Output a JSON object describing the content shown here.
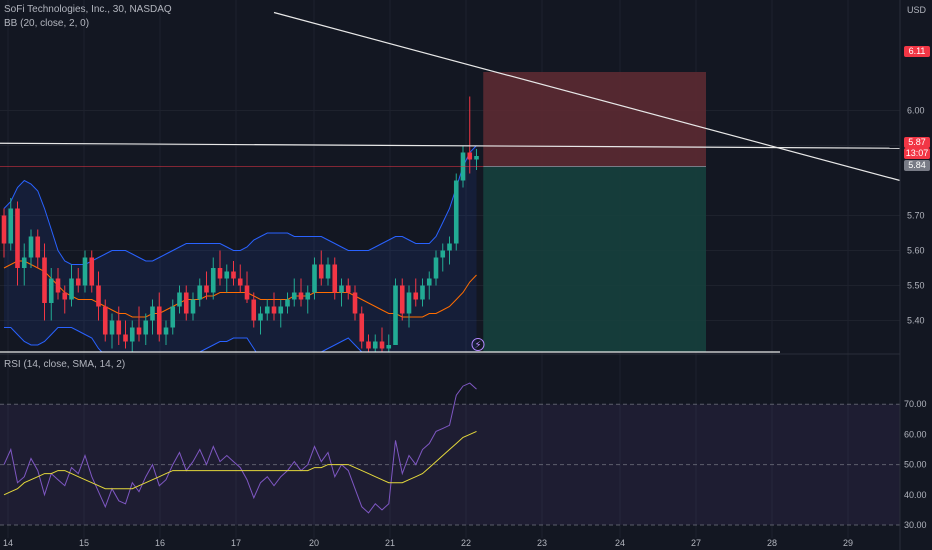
{
  "header": {
    "symbol_line": "SoFi Technologies, Inc., 30, NASDAQ",
    "indicator_line": "BB (20, close, 2, 0)",
    "rsi_line": "RSI (14, close, SMA, 14, 2)",
    "currency": "USD"
  },
  "price_tags": {
    "stop": "6.11",
    "last": "5.87",
    "countdown": "13:07",
    "entry": "5.84"
  },
  "colors": {
    "background": "#131722",
    "up": "#22ab94",
    "down": "#f23645",
    "bb_band": "#2962ff",
    "bb_basis": "#ff6d00",
    "rsi_line": "#7e57c2",
    "rsi_ma": "#e4d83c",
    "stop_zone": "#5c2a32",
    "target_zone": "#16403d"
  },
  "chart_data": [
    {
      "type": "candlestick",
      "price_axis": {
        "ticks": [
          6.0,
          5.9,
          5.7,
          5.6,
          5.5,
          5.4
        ],
        "tick_labels": [
          "6.00",
          "5.90",
          "5.70",
          "5.60",
          "5.50",
          "5.40"
        ],
        "range": [
          5.31,
          6.23
        ]
      },
      "time_axis": {
        "tick_labels": [
          "14",
          "15",
          "16",
          "17",
          "20",
          "21",
          "22",
          "23",
          "24",
          "27",
          "28",
          "29"
        ]
      },
      "candles_ohlc": [
        [
          5.7,
          5.72,
          5.58,
          5.62
        ],
        [
          5.62,
          5.75,
          5.6,
          5.72
        ],
        [
          5.72,
          5.74,
          5.5,
          5.55
        ],
        [
          5.55,
          5.62,
          5.5,
          5.58
        ],
        [
          5.58,
          5.66,
          5.55,
          5.64
        ],
        [
          5.64,
          5.66,
          5.55,
          5.58
        ],
        [
          5.58,
          5.62,
          5.4,
          5.45
        ],
        [
          5.45,
          5.55,
          5.4,
          5.52
        ],
        [
          5.52,
          5.55,
          5.46,
          5.48
        ],
        [
          5.48,
          5.5,
          5.42,
          5.46
        ],
        [
          5.46,
          5.56,
          5.44,
          5.52
        ],
        [
          5.52,
          5.55,
          5.48,
          5.5
        ],
        [
          5.5,
          5.6,
          5.48,
          5.58
        ],
        [
          5.58,
          5.6,
          5.48,
          5.5
        ],
        [
          5.5,
          5.54,
          5.4,
          5.44
        ],
        [
          5.44,
          5.46,
          5.34,
          5.36
        ],
        [
          5.36,
          5.42,
          5.32,
          5.4
        ],
        [
          5.4,
          5.44,
          5.33,
          5.36
        ],
        [
          5.36,
          5.4,
          5.32,
          5.34
        ],
        [
          5.34,
          5.4,
          5.3,
          5.38
        ],
        [
          5.38,
          5.44,
          5.34,
          5.36
        ],
        [
          5.36,
          5.42,
          5.33,
          5.4
        ],
        [
          5.4,
          5.46,
          5.36,
          5.44
        ],
        [
          5.44,
          5.48,
          5.34,
          5.36
        ],
        [
          5.36,
          5.4,
          5.33,
          5.38
        ],
        [
          5.38,
          5.46,
          5.36,
          5.44
        ],
        [
          5.44,
          5.5,
          5.42,
          5.48
        ],
        [
          5.48,
          5.5,
          5.4,
          5.42
        ],
        [
          5.42,
          5.48,
          5.4,
          5.46
        ],
        [
          5.46,
          5.52,
          5.44,
          5.5
        ],
        [
          5.5,
          5.54,
          5.46,
          5.48
        ],
        [
          5.48,
          5.58,
          5.46,
          5.55
        ],
        [
          5.55,
          5.6,
          5.5,
          5.52
        ],
        [
          5.52,
          5.56,
          5.48,
          5.54
        ],
        [
          5.54,
          5.57,
          5.5,
          5.52
        ],
        [
          5.52,
          5.56,
          5.48,
          5.5
        ],
        [
          5.5,
          5.54,
          5.45,
          5.46
        ],
        [
          5.46,
          5.48,
          5.38,
          5.4
        ],
        [
          5.4,
          5.44,
          5.36,
          5.42
        ],
        [
          5.42,
          5.46,
          5.4,
          5.44
        ],
        [
          5.44,
          5.48,
          5.4,
          5.42
        ],
        [
          5.42,
          5.46,
          5.38,
          5.44
        ],
        [
          5.44,
          5.48,
          5.42,
          5.46
        ],
        [
          5.46,
          5.52,
          5.44,
          5.48
        ],
        [
          5.48,
          5.52,
          5.44,
          5.46
        ],
        [
          5.46,
          5.5,
          5.42,
          5.48
        ],
        [
          5.48,
          5.58,
          5.46,
          5.56
        ],
        [
          5.56,
          5.6,
          5.5,
          5.52
        ],
        [
          5.52,
          5.58,
          5.5,
          5.56
        ],
        [
          5.56,
          5.58,
          5.46,
          5.48
        ],
        [
          5.48,
          5.52,
          5.44,
          5.5
        ],
        [
          5.5,
          5.52,
          5.46,
          5.48
        ],
        [
          5.48,
          5.5,
          5.4,
          5.42
        ],
        [
          5.42,
          5.44,
          5.32,
          5.34
        ],
        [
          5.34,
          5.36,
          5.31,
          5.32
        ],
        [
          5.32,
          5.36,
          5.31,
          5.34
        ],
        [
          5.34,
          5.38,
          5.31,
          5.32
        ],
        [
          5.32,
          5.36,
          5.31,
          5.33
        ],
        [
          5.33,
          5.52,
          5.33,
          5.5
        ],
        [
          5.5,
          5.52,
          5.4,
          5.42
        ],
        [
          5.42,
          5.5,
          5.38,
          5.48
        ],
        [
          5.48,
          5.52,
          5.44,
          5.46
        ],
        [
          5.46,
          5.52,
          5.44,
          5.5
        ],
        [
          5.5,
          5.54,
          5.46,
          5.52
        ],
        [
          5.52,
          5.6,
          5.5,
          5.58
        ],
        [
          5.58,
          5.62,
          5.54,
          5.6
        ],
        [
          5.6,
          5.64,
          5.56,
          5.62
        ],
        [
          5.62,
          5.82,
          5.6,
          5.8
        ],
        [
          5.8,
          5.9,
          5.78,
          5.88
        ],
        [
          5.88,
          6.04,
          5.82,
          5.86
        ],
        [
          5.86,
          5.89,
          5.83,
          5.87
        ]
      ],
      "bollinger": {
        "upper": [
          5.72,
          5.74,
          5.78,
          5.8,
          5.79,
          5.77,
          5.72,
          5.66,
          5.6,
          5.57,
          5.56,
          5.56,
          5.56,
          5.57,
          5.58,
          5.59,
          5.6,
          5.6,
          5.6,
          5.59,
          5.58,
          5.57,
          5.57,
          5.58,
          5.59,
          5.6,
          5.61,
          5.62,
          5.62,
          5.62,
          5.62,
          5.62,
          5.62,
          5.61,
          5.6,
          5.6,
          5.61,
          5.63,
          5.64,
          5.65,
          5.65,
          5.65,
          5.65,
          5.64,
          5.64,
          5.64,
          5.64,
          5.64,
          5.63,
          5.62,
          5.61,
          5.6,
          5.6,
          5.6,
          5.6,
          5.61,
          5.62,
          5.63,
          5.64,
          5.64,
          5.63,
          5.62,
          5.62,
          5.62,
          5.64,
          5.68,
          5.72,
          5.78,
          5.84,
          5.88,
          5.9
        ],
        "basis": [
          5.55,
          5.56,
          5.57,
          5.57,
          5.56,
          5.55,
          5.54,
          5.52,
          5.5,
          5.48,
          5.47,
          5.46,
          5.46,
          5.46,
          5.45,
          5.44,
          5.43,
          5.42,
          5.42,
          5.41,
          5.41,
          5.41,
          5.42,
          5.42,
          5.43,
          5.44,
          5.45,
          5.46,
          5.46,
          5.46,
          5.47,
          5.47,
          5.48,
          5.48,
          5.48,
          5.48,
          5.48,
          5.47,
          5.46,
          5.46,
          5.46,
          5.46,
          5.46,
          5.47,
          5.47,
          5.47,
          5.48,
          5.48,
          5.48,
          5.48,
          5.48,
          5.48,
          5.47,
          5.46,
          5.45,
          5.44,
          5.43,
          5.42,
          5.42,
          5.41,
          5.41,
          5.41,
          5.41,
          5.42,
          5.42,
          5.43,
          5.44,
          5.46,
          5.48,
          5.51,
          5.53
        ],
        "lower": [
          5.38,
          5.38,
          5.36,
          5.34,
          5.33,
          5.33,
          5.34,
          5.36,
          5.38,
          5.38,
          5.38,
          5.37,
          5.36,
          5.35,
          5.32,
          5.3,
          5.28,
          5.26,
          5.25,
          5.24,
          5.24,
          5.25,
          5.26,
          5.27,
          5.28,
          5.29,
          5.3,
          5.3,
          5.31,
          5.31,
          5.32,
          5.33,
          5.34,
          5.34,
          5.35,
          5.35,
          5.35,
          5.32,
          5.29,
          5.28,
          5.28,
          5.28,
          5.28,
          5.29,
          5.3,
          5.3,
          5.31,
          5.31,
          5.32,
          5.33,
          5.34,
          5.35,
          5.33,
          5.31,
          5.29,
          5.27,
          5.24,
          5.21,
          5.19,
          5.18,
          5.19,
          5.2,
          5.2,
          5.21,
          5.2,
          5.18,
          5.16,
          5.14,
          5.12,
          5.13,
          5.16
        ]
      },
      "levels": {
        "resistance": 5.895,
        "entry": 5.84,
        "stop": 6.11,
        "support": 5.31
      },
      "position_box": {
        "from_candle": 71,
        "to_candle": 104,
        "stop": 6.11,
        "entry": 5.84,
        "target": 5.31
      },
      "trendline": {
        "from_candle": 40,
        "from_price": 6.28,
        "to_candle": 116,
        "to_price": 5.8
      },
      "annotation": "⚡"
    },
    {
      "type": "line",
      "name": "RSI",
      "axis": {
        "ticks": [
          70,
          60,
          50,
          40,
          30
        ],
        "tick_labels": [
          "70.00",
          "60.00",
          "50.00",
          "40.00",
          "30.00"
        ],
        "range": [
          27,
          82
        ]
      },
      "bands": {
        "upper": 70,
        "middle": 50,
        "lower": 30
      },
      "rsi": [
        50,
        55,
        44,
        46,
        52,
        48,
        40,
        47,
        45,
        43,
        49,
        47,
        53,
        46,
        41,
        36,
        42,
        38,
        37,
        44,
        41,
        46,
        50,
        43,
        45,
        50,
        54,
        48,
        51,
        55,
        50,
        56,
        51,
        53,
        51,
        49,
        45,
        39,
        44,
        46,
        43,
        46,
        48,
        51,
        48,
        50,
        56,
        51,
        54,
        46,
        50,
        48,
        42,
        36,
        34,
        37,
        35,
        37,
        58,
        47,
        53,
        50,
        55,
        57,
        61,
        62,
        63,
        73,
        76,
        77,
        75
      ],
      "rsi_ma": [
        40,
        41,
        42,
        44,
        45,
        46,
        47,
        47,
        48,
        48,
        47,
        46,
        45,
        44,
        43,
        42,
        42,
        42,
        42,
        42,
        43,
        44,
        45,
        46,
        47,
        48,
        48,
        48,
        48,
        48,
        48,
        48,
        48,
        48,
        48,
        48,
        48,
        48,
        48,
        48,
        48,
        48,
        48,
        48,
        48,
        48,
        49,
        49,
        50,
        50,
        50,
        50,
        49,
        48,
        47,
        46,
        45,
        44,
        44,
        44,
        45,
        46,
        47,
        49,
        51,
        53,
        55,
        57,
        59,
        60,
        61
      ]
    }
  ]
}
